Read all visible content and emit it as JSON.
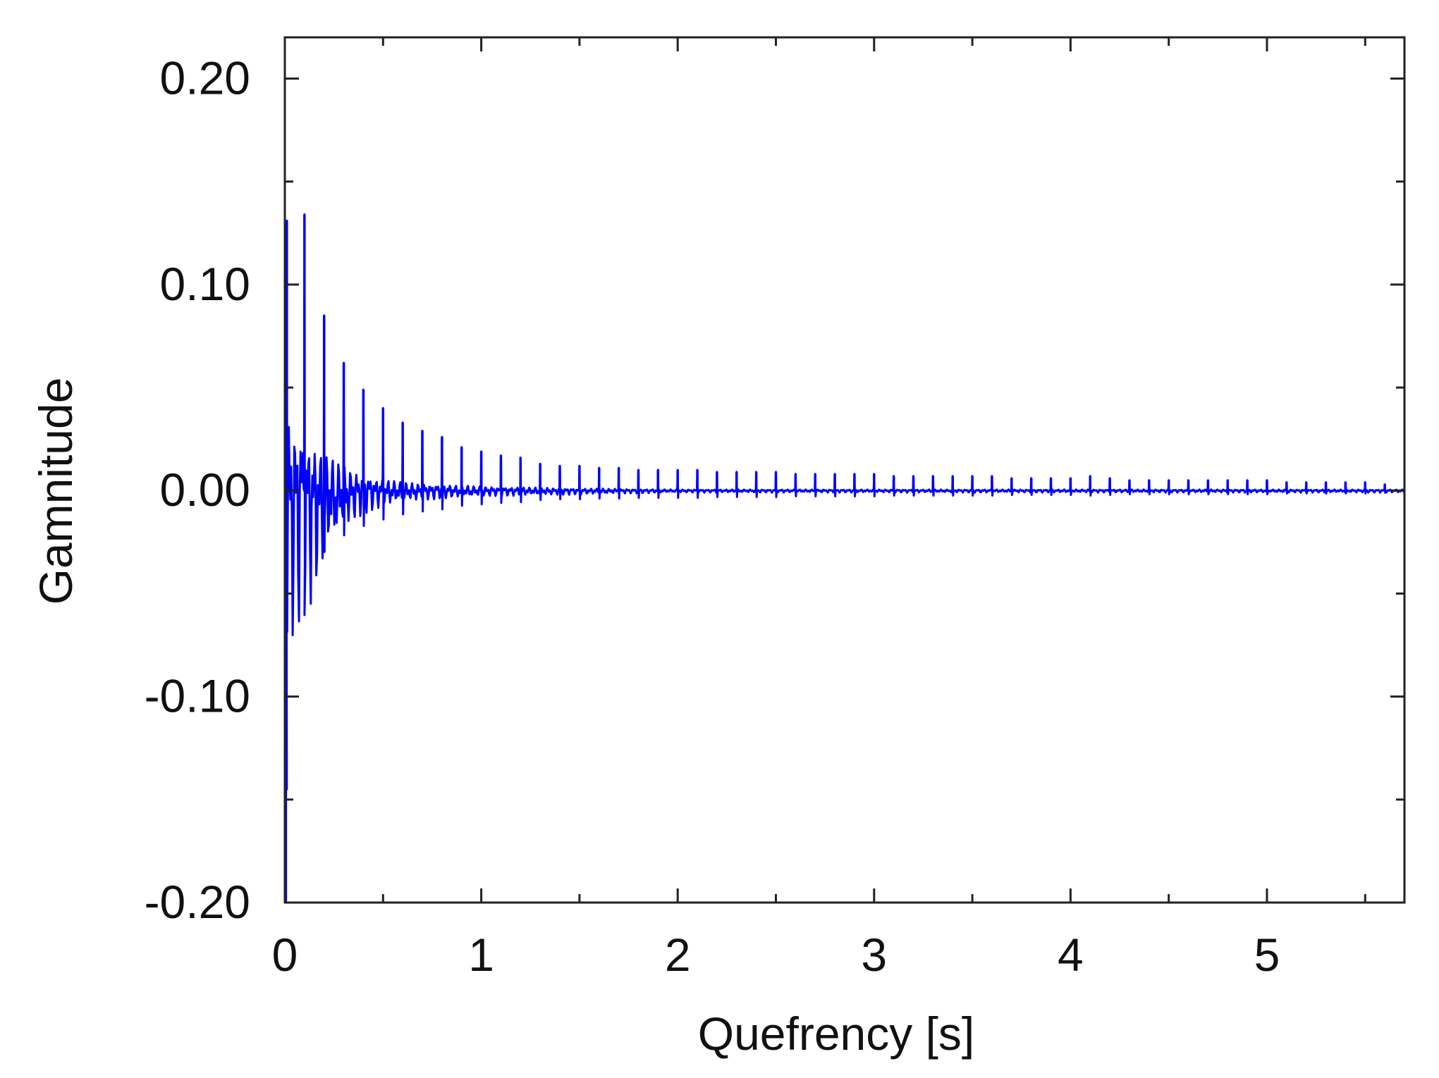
{
  "chart_data": {
    "type": "line",
    "title": "",
    "xlabel": "Quefrency [s]",
    "ylabel": "Gamnitude",
    "xlim": [
      0,
      5.7
    ],
    "ylim": [
      -0.2,
      0.22
    ],
    "x_ticks": [
      0,
      1,
      2,
      3,
      4,
      5
    ],
    "x_tick_labels": [
      "0",
      "1",
      "2",
      "3",
      "4",
      "5"
    ],
    "y_ticks": [
      -0.2,
      -0.1,
      0.0,
      0.1,
      0.2
    ],
    "y_tick_labels": [
      "-0.20",
      "-0.10",
      "0.00",
      "0.10",
      "0.20"
    ],
    "y_minor_ticks": [
      -0.15,
      -0.05,
      0.05,
      0.15
    ],
    "x_minor_ticks": [
      0.5,
      1.5,
      2.5,
      3.5,
      4.5,
      5.5
    ],
    "grid": false,
    "line_color": "#0000ff",
    "series": [
      {
        "peaks": {
          "x": [
            0.01,
            0.1,
            0.2,
            0.3,
            0.4,
            0.5,
            0.6,
            0.7,
            0.8,
            0.9,
            1.0,
            1.1,
            1.2,
            1.3,
            1.4,
            1.5,
            1.6,
            1.7,
            1.8,
            1.9,
            2.0,
            2.1,
            2.2,
            2.3,
            2.4,
            2.5,
            2.6,
            2.7,
            2.8,
            2.9,
            3.0,
            3.1,
            3.2,
            3.3,
            3.4,
            3.5,
            3.6,
            3.7,
            3.8,
            3.9,
            4.0,
            4.1,
            4.2,
            4.3,
            4.4,
            4.5,
            4.6,
            4.7,
            4.8,
            4.9,
            5.0,
            5.1,
            5.2,
            5.3,
            5.4,
            5.5,
            5.6
          ],
          "y": [
            0.131,
            0.134,
            0.085,
            0.062,
            0.049,
            0.04,
            0.033,
            0.029,
            0.026,
            0.021,
            0.019,
            0.017,
            0.016,
            0.013,
            0.012,
            0.012,
            0.011,
            0.011,
            0.01,
            0.01,
            0.01,
            0.01,
            0.009,
            0.009,
            0.009,
            0.009,
            0.008,
            0.008,
            0.008,
            0.008,
            0.008,
            0.007,
            0.007,
            0.007,
            0.007,
            0.007,
            0.007,
            0.006,
            0.006,
            0.006,
            0.006,
            0.007,
            0.006,
            0.005,
            0.005,
            0.005,
            0.005,
            0.005,
            0.005,
            0.005,
            0.005,
            0.004,
            0.004,
            0.004,
            0.004,
            0.004,
            0.003
          ]
        },
        "initial_min": {
          "x": 0.005,
          "y": -0.2
        },
        "initial_dip": {
          "x": 0.01,
          "y": -0.145
        },
        "envelope": {
          "x": [
            0.02,
            0.05,
            0.1,
            0.15,
            0.2,
            0.3,
            0.4,
            0.5,
            0.6,
            0.8,
            1.0,
            1.5,
            2.0
          ],
          "upper": [
            0.038,
            0.036,
            0.03,
            0.022,
            0.018,
            0.012,
            0.008,
            0.006,
            0.004,
            0.003,
            0.002,
            0.001,
            0.0005
          ],
          "lower": [
            -0.085,
            -0.07,
            -0.065,
            -0.055,
            -0.038,
            -0.02,
            -0.012,
            -0.008,
            -0.006,
            -0.004,
            -0.003,
            -0.002,
            -0.001
          ]
        }
      }
    ]
  }
}
